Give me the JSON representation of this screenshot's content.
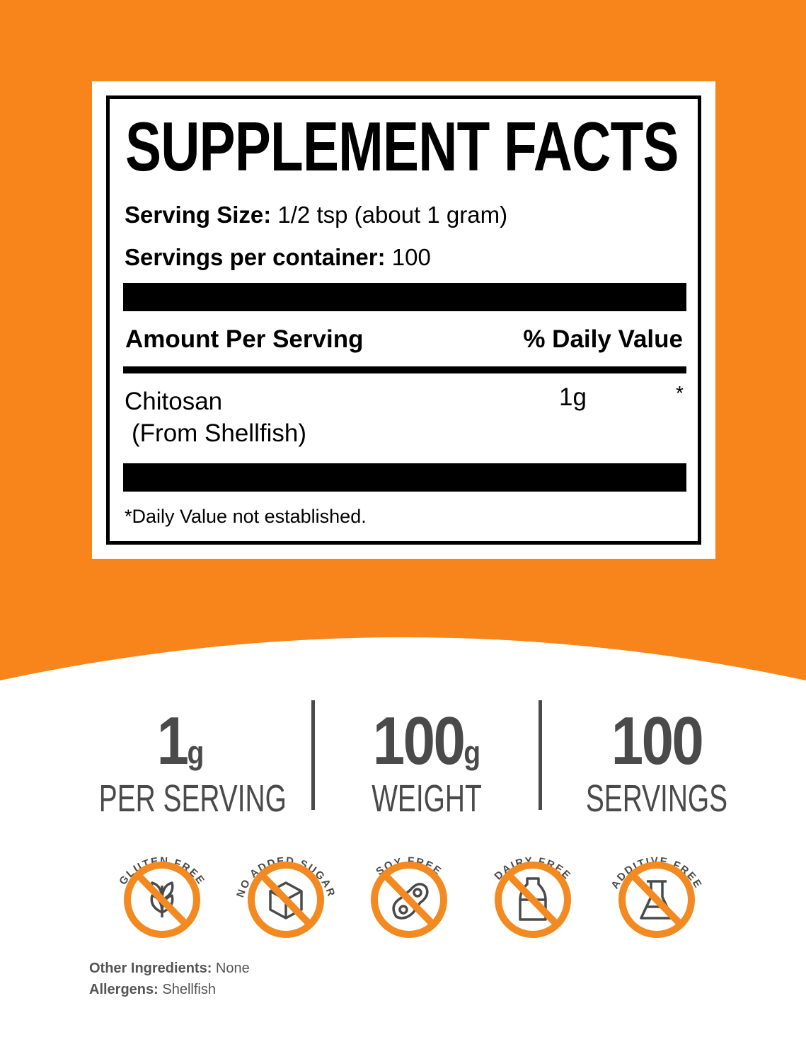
{
  "colors": {
    "orange": "#F7851B",
    "badge_orange": "#F28A21",
    "text_gray": "#4a4a4a"
  },
  "facts": {
    "title": "SUPPLEMENT FACTS",
    "serving_size_label": "Serving Size:",
    "serving_size_value": "1/2 tsp (about 1 gram)",
    "servings_label": "Servings per container:",
    "servings_value": "100",
    "amount_header": "Amount Per Serving",
    "dv_header": "% Daily Value",
    "ingredient": "Chitosan",
    "ingredient_source": "(From Shellfish)",
    "ingredient_amount": "1g",
    "ingredient_dv": "*",
    "footnote": "*Daily Value not established."
  },
  "stats": [
    {
      "value": "1",
      "unit": "g",
      "label": "PER SERVING"
    },
    {
      "value": "100",
      "unit": "g",
      "label": "WEIGHT"
    },
    {
      "value": "100",
      "unit": "",
      "label": "SERVINGS"
    }
  ],
  "badges": [
    {
      "label": "GLUTEN FREE",
      "icon": "wheat-icon"
    },
    {
      "label": "NO ADDED SUGAR",
      "icon": "sugar-cube-icon"
    },
    {
      "label": "SOY FREE",
      "icon": "soybean-icon"
    },
    {
      "label": "DAIRY FREE",
      "icon": "milk-bottle-icon"
    },
    {
      "label": "ADDITIVE FREE",
      "icon": "flask-icon"
    }
  ],
  "other_ingredients_label": "Other Ingredients:",
  "other_ingredients_value": "None",
  "allergens_label": "Allergens:",
  "allergens_value": "Shellfish"
}
